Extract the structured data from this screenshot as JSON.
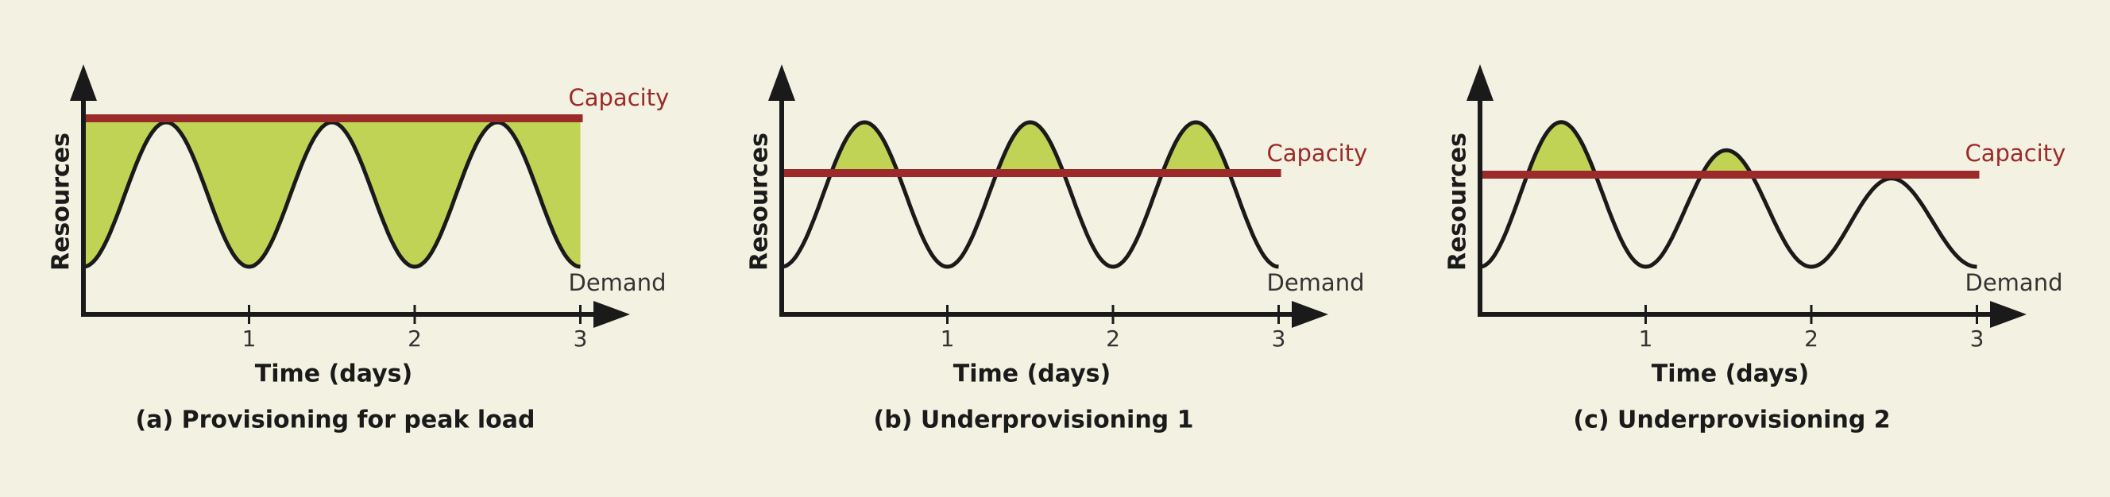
{
  "panels": [
    {
      "caption": "(a) Provisioning for peak load",
      "y_label": "Resources",
      "x_label": "Time (days)",
      "x_ticks": [
        1,
        2,
        3
      ],
      "capacity_label": "Capacity",
      "demand_label": "Demand"
    },
    {
      "caption": "(b) Underprovisioning 1",
      "y_label": "Resources",
      "x_label": "Time (days)",
      "x_ticks": [
        1,
        2,
        3
      ],
      "capacity_label": "Capacity",
      "demand_label": "Demand"
    },
    {
      "caption": "(c) Underprovisioning 2",
      "y_label": "Resources",
      "x_label": "Time (days)",
      "x_ticks": [
        1,
        2,
        3
      ],
      "capacity_label": "Capacity",
      "demand_label": "Demand"
    }
  ]
}
